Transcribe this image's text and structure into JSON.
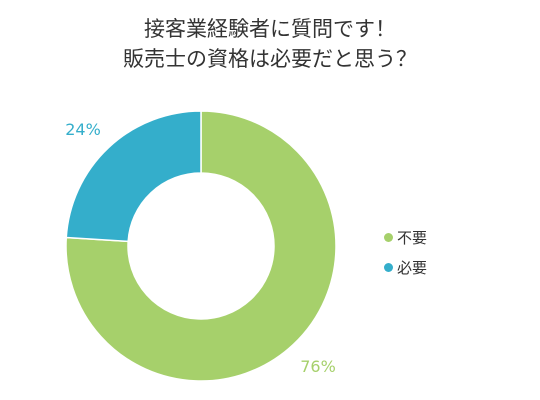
{
  "title_lines": [
    "接客業経験者に質問です！",
    "販売士の資格は必要だと思う？"
  ],
  "chart_data": {
    "type": "pie",
    "title": "接客業経験者に質問です！販売士の資格は必要だと思う？",
    "slices": [
      {
        "label": "必要",
        "value": 24,
        "label_text": "24%",
        "color": "#34aecb"
      },
      {
        "label": "不要",
        "value": 76,
        "label_text": "76%",
        "color": "#a6d06b"
      }
    ],
    "legend_placement": "right",
    "donut": true
  }
}
